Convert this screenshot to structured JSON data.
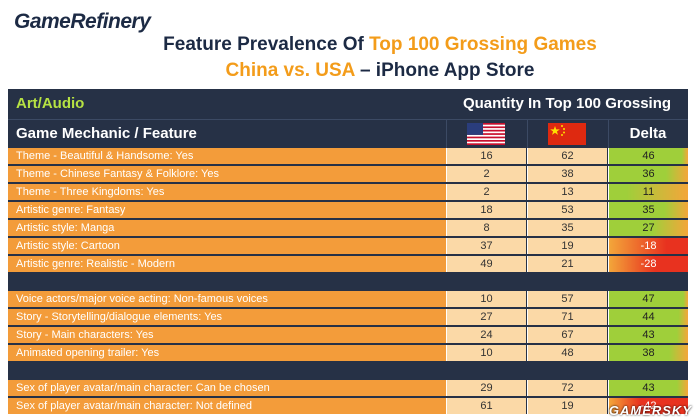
{
  "logo": "GameRefinery",
  "title": {
    "line1_pre": "Feature Prevalence Of ",
    "line1_hl": "Top 100 Grossing Games",
    "line2_hl": "China vs. USA",
    "line2_post": " – iPhone App Store"
  },
  "table": {
    "category": "Art/Audio",
    "quantity_header": "Quantity In Top 100 Grossing",
    "mechanic_header": "Game Mechanic / Feature",
    "delta_header": "Delta",
    "groups": [
      [
        {
          "label": "Theme - Beautiful & Handsome: Yes",
          "us": "16",
          "cn": "62",
          "delta": "46"
        },
        {
          "label": "Theme - Chinese Fantasy & Folklore: Yes",
          "us": "2",
          "cn": "38",
          "delta": "36"
        },
        {
          "label": "Theme - Three Kingdoms: Yes",
          "us": "2",
          "cn": "13",
          "delta": "11"
        },
        {
          "label": "Artistic genre: Fantasy",
          "us": "18",
          "cn": "53",
          "delta": "35"
        },
        {
          "label": "Artistic style: Manga",
          "us": "8",
          "cn": "35",
          "delta": "27"
        },
        {
          "label": "Artistic style: Cartoon",
          "us": "37",
          "cn": "19",
          "delta": "-18"
        },
        {
          "label": "Artistic genre: Realistic - Modern",
          "us": "49",
          "cn": "21",
          "delta": "-28"
        }
      ],
      [
        {
          "label": "Voice actors/major voice acting: Non-famous voices",
          "us": "10",
          "cn": "57",
          "delta": "47"
        },
        {
          "label": "Story - Storytelling/dialogue elements: Yes",
          "us": "27",
          "cn": "71",
          "delta": "44"
        },
        {
          "label": "Story - Main characters: Yes",
          "us": "24",
          "cn": "67",
          "delta": "43"
        },
        {
          "label": "Animated opening trailer: Yes",
          "us": "10",
          "cn": "48",
          "delta": "38"
        }
      ],
      [
        {
          "label": "Sex of player avatar/main character: Can be chosen",
          "us": "29",
          "cn": "72",
          "delta": "43"
        },
        {
          "label": "Sex of player avatar/main character: Not defined",
          "us": "61",
          "cn": "19",
          "delta": "-42"
        }
      ]
    ]
  },
  "watermark": "GAMERSKY"
}
